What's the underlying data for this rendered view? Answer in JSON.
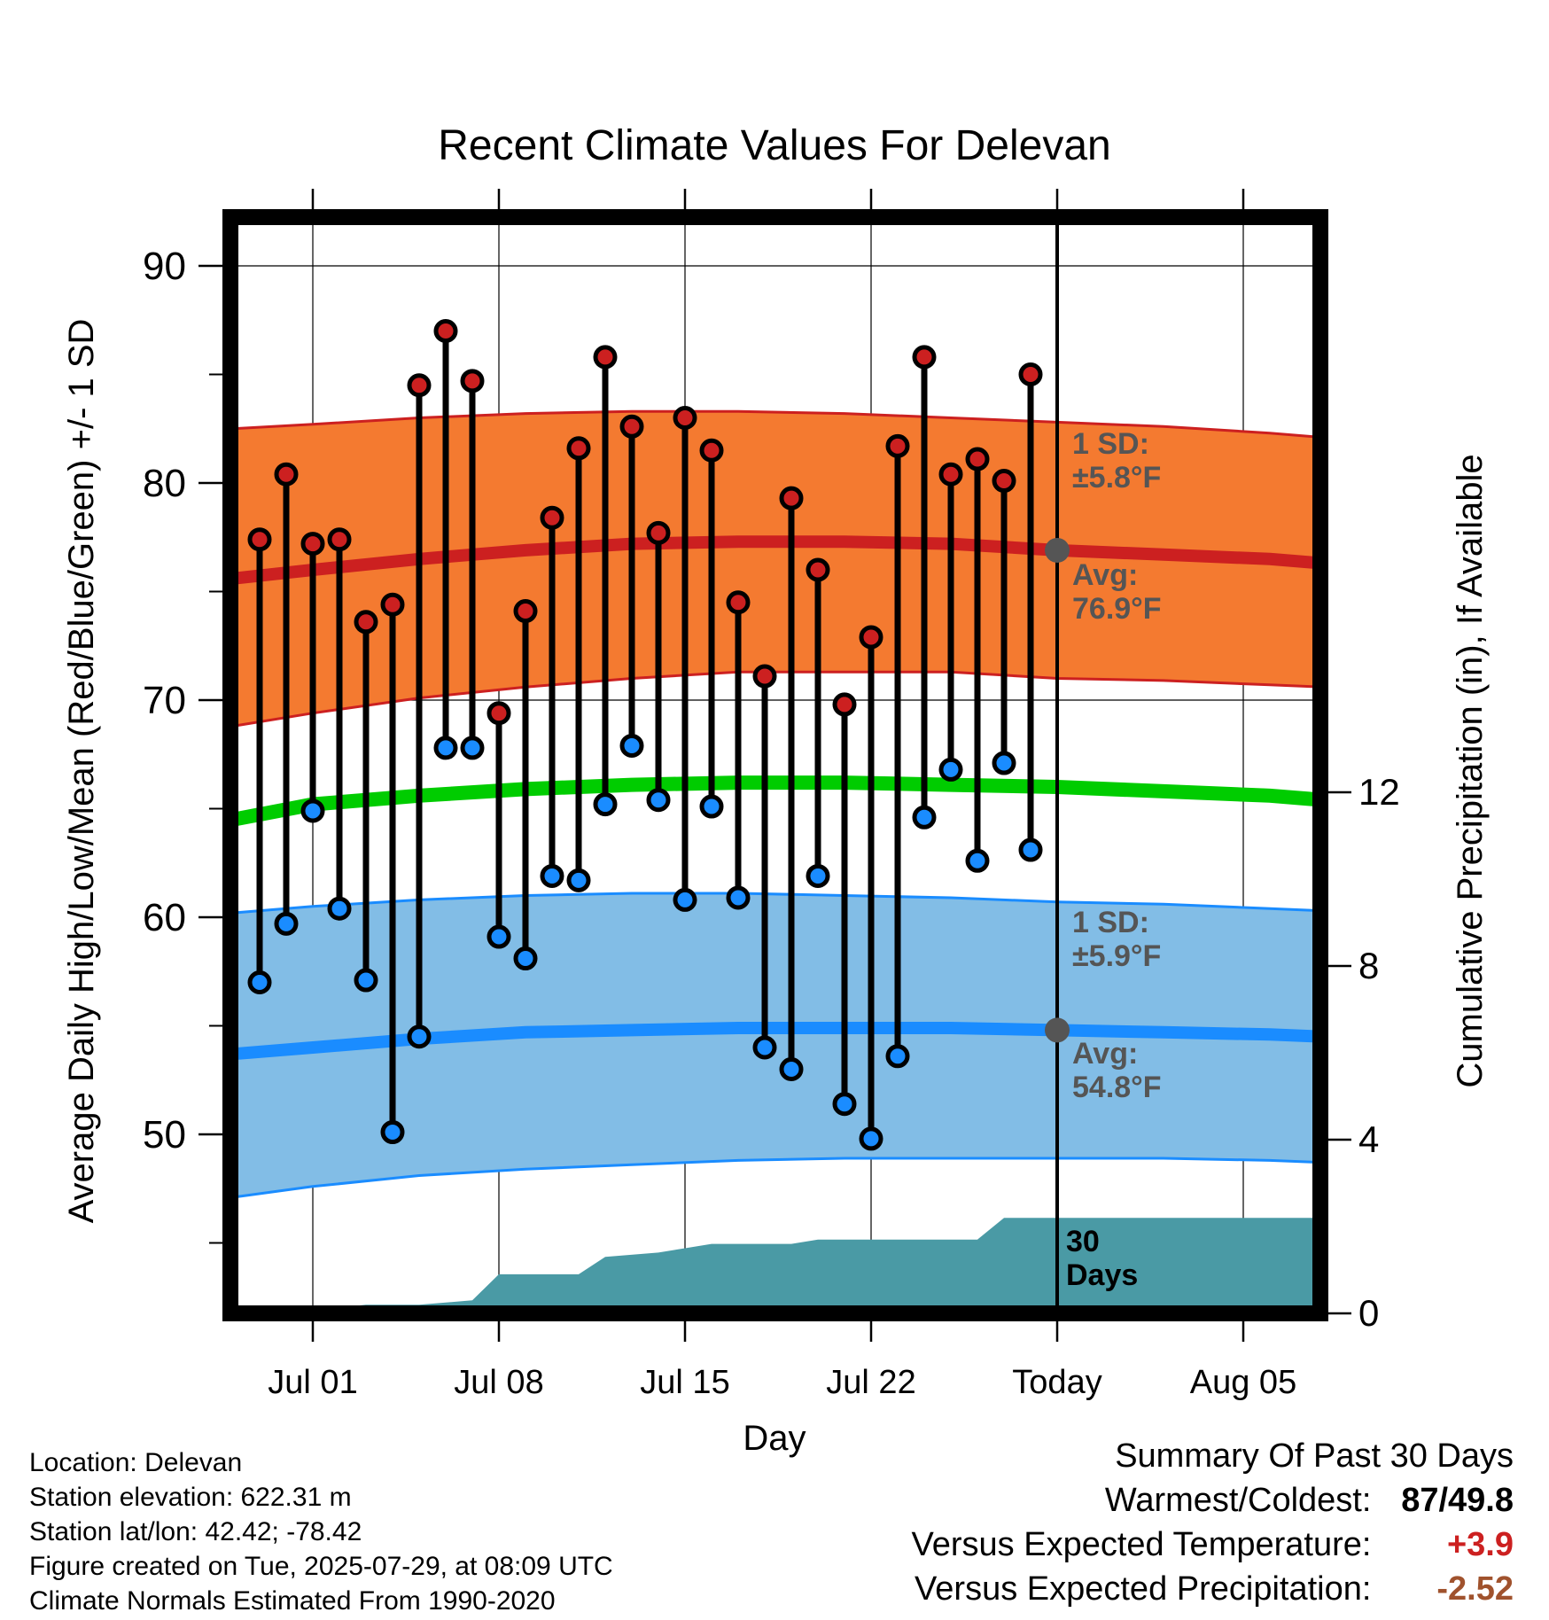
{
  "chart_data": {
    "type": "line",
    "title": "Recent Climate Values For Delevan",
    "xlabel": "Day",
    "ylabel": "Average Daily High/Low/Mean (Red/Blue/Green) +/- 1 SD",
    "y2label": "Cumulative Precipitation (in), If Available",
    "ylim": [
      42,
      92
    ],
    "y2lim": [
      0,
      36
    ],
    "yticks": [
      50,
      60,
      70,
      80,
      90
    ],
    "y2ticks": [
      0,
      4,
      8,
      12
    ],
    "x_day_range": [
      -31,
      10
    ],
    "x_ticks": [
      {
        "label": "Jul 01",
        "day": -28
      },
      {
        "label": "Jul 08",
        "day": -21
      },
      {
        "label": "Jul 15",
        "day": -14
      },
      {
        "label": "Jul 22",
        "day": -7
      },
      {
        "label": "Today",
        "day": 0
      },
      {
        "label": "Aug 05",
        "day": 7
      }
    ],
    "daily_obs": {
      "day": [
        -30,
        -29,
        -28,
        -27,
        -26,
        -25,
        -24,
        -23,
        -22,
        -21,
        -20,
        -19,
        -18,
        -17,
        -16,
        -15,
        -14,
        -13,
        -12,
        -11,
        -10,
        -9,
        -8,
        -7,
        -6,
        -5,
        -4,
        -3,
        -2,
        -1
      ],
      "high": [
        77.4,
        80.4,
        77.2,
        77.4,
        73.6,
        74.4,
        84.5,
        87.0,
        84.7,
        69.4,
        74.1,
        78.4,
        81.6,
        85.8,
        82.6,
        77.7,
        83.0,
        81.5,
        74.5,
        71.1,
        79.3,
        76.0,
        69.8,
        72.9,
        81.7,
        85.8,
        80.4,
        81.1,
        80.1,
        85.0
      ],
      "low": [
        57.0,
        59.7,
        64.9,
        60.4,
        57.1,
        50.1,
        54.5,
        67.8,
        67.8,
        59.1,
        58.1,
        61.9,
        61.7,
        65.2,
        67.9,
        65.4,
        60.8,
        65.1,
        60.9,
        54.0,
        53.0,
        61.9,
        51.4,
        49.8,
        53.6,
        64.6,
        66.8,
        62.6,
        67.1,
        63.1
      ]
    },
    "normals_day": [
      -31,
      -28,
      -24,
      -20,
      -16,
      -12,
      -8,
      -4,
      0,
      4,
      8,
      10
    ],
    "normal_high_avg": [
      75.6,
      76.0,
      76.5,
      76.9,
      77.2,
      77.3,
      77.3,
      77.2,
      76.9,
      76.7,
      76.5,
      76.3
    ],
    "normal_high_upper": [
      82.5,
      82.7,
      83.0,
      83.2,
      83.3,
      83.3,
      83.2,
      83.0,
      82.8,
      82.6,
      82.3,
      82.1
    ],
    "normal_high_lower": [
      68.8,
      69.4,
      70.1,
      70.6,
      71.0,
      71.3,
      71.3,
      71.3,
      71.0,
      70.9,
      70.7,
      70.6
    ],
    "normal_mean": [
      64.5,
      65.2,
      65.6,
      65.9,
      66.1,
      66.2,
      66.2,
      66.1,
      66.0,
      65.8,
      65.6,
      65.4
    ],
    "normal_low_avg": [
      53.7,
      54.0,
      54.4,
      54.7,
      54.8,
      54.9,
      54.9,
      54.9,
      54.8,
      54.7,
      54.6,
      54.5
    ],
    "normal_low_upper": [
      60.2,
      60.5,
      60.8,
      61.0,
      61.1,
      61.1,
      61.0,
      60.9,
      60.7,
      60.6,
      60.4,
      60.3
    ],
    "normal_low_lower": [
      47.1,
      47.6,
      48.1,
      48.4,
      48.6,
      48.8,
      48.9,
      48.9,
      48.9,
      48.9,
      48.8,
      48.7
    ],
    "precip_cumulative": {
      "day": [
        -31,
        -29,
        -26,
        -24,
        -22,
        -21,
        -18,
        -17,
        -15,
        -14,
        -13,
        -10,
        -9,
        -6,
        -3,
        -2,
        10
      ],
      "value": [
        0,
        0,
        0.2,
        0.2,
        0.3,
        0.9,
        0.9,
        1.3,
        1.4,
        1.5,
        1.6,
        1.6,
        1.7,
        1.7,
        1.7,
        2.2,
        2.2
      ]
    },
    "annotations": {
      "high_sd": "1 SD:\n±5.8°F",
      "high_avg": "Avg:\n76.9°F",
      "low_sd": "1 SD:\n±5.9°F",
      "low_avg": "Avg:\n54.8°F",
      "period": "30\nDays"
    },
    "colors": {
      "high_band": "#f47a30",
      "high_line": "#cc2020",
      "low_band": "#82bde6",
      "low_line": "#1a8cff",
      "mean_line": "#00cc00",
      "precip": "#4a9aa5",
      "high_dot": "#cc2020",
      "low_dot": "#1a8cff",
      "annotation": "#555555"
    }
  },
  "info": {
    "location": "Location: Delevan",
    "elevation": "Station elevation: 622.31 m",
    "latlon": "Station lat/lon: 42.42; -78.42",
    "created": "Figure created on Tue, 2025-07-29, at 08:09 UTC",
    "normals": "Climate Normals Estimated From 1990-2020"
  },
  "summary": {
    "title": "Summary Of Past 30 Days",
    "warm_cold_label": "Warmest/Coldest:",
    "warm_value": "87",
    "sep": "/",
    "cold_value": "49.8",
    "temp_label": "Versus Expected Temperature:",
    "temp_value": "+3.9",
    "temp_color": "#cc2020",
    "precip_label": "Versus Expected Precipitation:",
    "precip_value": "-2.52",
    "precip_color": "#a0522d"
  }
}
